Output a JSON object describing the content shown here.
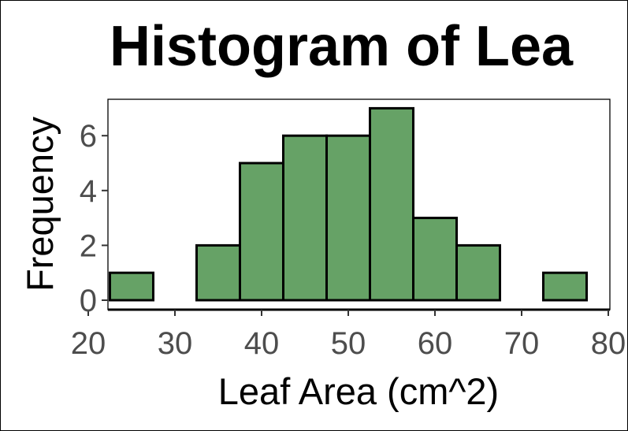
{
  "chart_data": {
    "type": "bar",
    "title": "Histogram of Lea",
    "xlabel": "Leaf Area (cm^2)",
    "ylabel": "Frequency",
    "bins": [
      {
        "x0": 22.5,
        "x1": 27.5,
        "count": 1
      },
      {
        "x0": 27.5,
        "x1": 32.5,
        "count": 0
      },
      {
        "x0": 32.5,
        "x1": 37.5,
        "count": 2
      },
      {
        "x0": 37.5,
        "x1": 42.5,
        "count": 5
      },
      {
        "x0": 42.5,
        "x1": 47.5,
        "count": 6
      },
      {
        "x0": 47.5,
        "x1": 52.5,
        "count": 6
      },
      {
        "x0": 52.5,
        "x1": 57.5,
        "count": 7
      },
      {
        "x0": 57.5,
        "x1": 62.5,
        "count": 3
      },
      {
        "x0": 62.5,
        "x1": 67.5,
        "count": 2
      },
      {
        "x0": 67.5,
        "x1": 72.5,
        "count": 0
      },
      {
        "x0": 72.5,
        "x1": 77.5,
        "count": 1
      }
    ],
    "xticks": [
      "20",
      "30",
      "40",
      "50",
      "60",
      "70",
      "80"
    ],
    "yticks": [
      "0",
      "2",
      "4",
      "6"
    ],
    "xlim": [
      20,
      80
    ],
    "ylim": [
      0,
      7.35
    ],
    "bar_color": "#66a266",
    "edge_color": "#000000",
    "grid": false
  }
}
